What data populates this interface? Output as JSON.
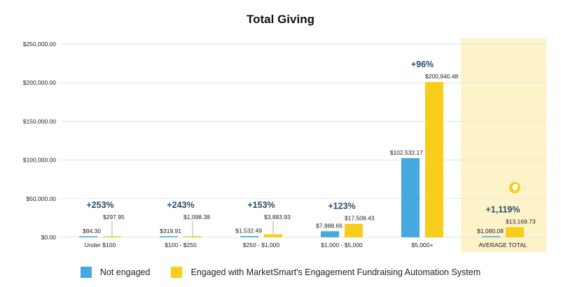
{
  "chart_data": {
    "type": "bar",
    "title": "Total Giving",
    "categories": [
      "Under $100",
      "$100 - $250",
      "$250 - $1,000",
      "$1,000 - $5,000",
      "$5,000+",
      "AVERAGE TOTAL"
    ],
    "series": [
      {
        "name": "Not engaged",
        "color": "#45a8de",
        "values": [
          84.3,
          319.91,
          1532.49,
          7888.66,
          102532.17,
          1080.08
        ],
        "labels": [
          "$84.30",
          "$319.91",
          "$1,532.49",
          "$7,888.66",
          "$102,532.17",
          "$1,080.08"
        ]
      },
      {
        "name": "Engaged with MarketSmart's Engagement Fundraising Automation System",
        "color": "#f8cd1c",
        "values": [
          297.95,
          1098.38,
          3883.93,
          17508.43,
          200940.48,
          13169.73
        ],
        "labels": [
          "$297.95",
          "$1,098.38",
          "$3,883.93",
          "$17,508.43",
          "$200,940.48",
          "$13,169.73"
        ]
      }
    ],
    "annotations": [
      "+253%",
      "+243%",
      "+153%",
      "+123%",
      "+96%",
      "+1,119%"
    ],
    "annotation_color": "#2b4e6e",
    "highlight_category": "AVERAGE TOTAL",
    "highlight_color": "#fdf3c9",
    "yticks": [
      "$0.00",
      "$50,000.00",
      "$100,000.00",
      "$150,000.00",
      "$200,000.00",
      "$250,000.00"
    ],
    "ytick_values": [
      0,
      50000,
      100000,
      150000,
      200000,
      250000
    ],
    "ylim": [
      0,
      250000
    ],
    "grid": true,
    "legend_position": "bottom",
    "icon": "lightbulb-icon"
  }
}
